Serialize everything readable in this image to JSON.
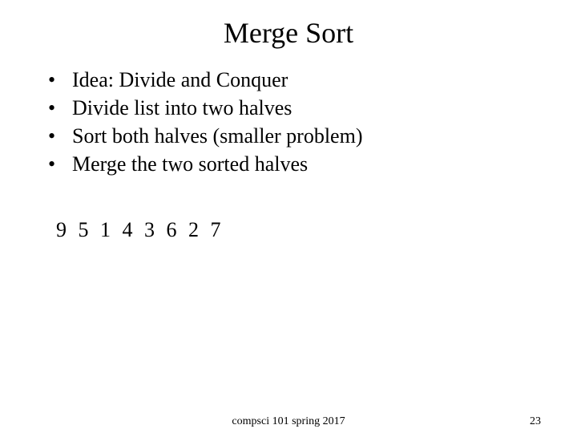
{
  "title": "Merge Sort",
  "bullets": [
    "Idea: Divide and Conquer",
    "Divide list into two halves",
    "Sort both halves (smaller problem)",
    "Merge the two sorted halves"
  ],
  "sequence": "9 5 1 4 3 6 2 7",
  "footer": {
    "course": "compsci 101 spring 2017",
    "page": "23"
  },
  "colors": {
    "background": "#ffffff",
    "text": "#000000"
  },
  "fonts": {
    "title_size": 36,
    "body_size": 26,
    "footer_size": 14,
    "family": "Times New Roman"
  }
}
